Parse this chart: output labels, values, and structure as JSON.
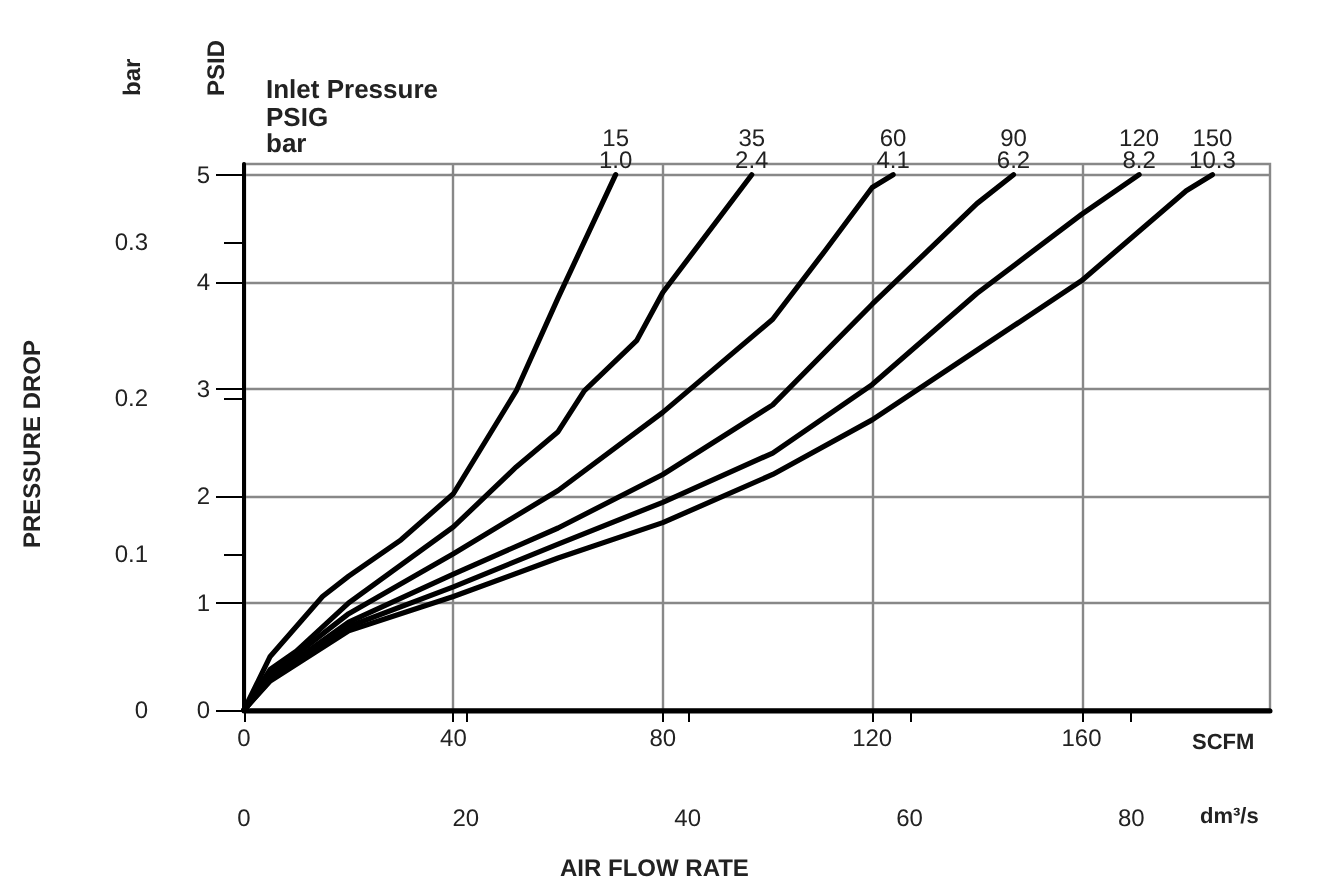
{
  "chart_data": {
    "type": "line",
    "legend_title": "Inlet Pressure",
    "xlabel": "SCFM",
    "x2label": "dm³/s",
    "ylabel": "PSID",
    "y2label": "bar",
    "annotations": [
      "PSIG",
      "bar",
      "PRESSURE DROP",
      "AIR FLOW RATE"
    ],
    "xlim": [
      0,
      196
    ],
    "xticks": [
      0,
      40,
      80,
      120,
      160
    ],
    "x2lim": [
      0,
      92.5
    ],
    "x2ticks": [
      0,
      20,
      40,
      60,
      80
    ],
    "ylim": [
      0,
      5.1
    ],
    "yticks": [
      0,
      1,
      2,
      3,
      4,
      5
    ],
    "y2lim": [
      0,
      0.35
    ],
    "y2ticks": [
      0,
      0.1,
      0.2,
      0.3
    ],
    "grid": true,
    "legend": false,
    "marker": "none",
    "line_style": "solid",
    "series": [
      {
        "name": "15\n1.0",
        "color": "#000000",
        "x": [
          0,
          5,
          15,
          20,
          30,
          40,
          52,
          60,
          71
        ],
        "values": [
          0,
          0.5,
          1.06,
          1.25,
          1.59,
          2.02,
          2.98,
          3.85,
          5
        ]
      },
      {
        "name": "35\n2.4",
        "color": "#000000",
        "x": [
          0,
          5,
          10,
          20,
          40,
          52,
          60,
          65,
          75,
          80,
          97
        ],
        "values": [
          0,
          0.38,
          0.55,
          1.0,
          1.71,
          2.27,
          2.6,
          2.98,
          3.45,
          3.9,
          5
        ]
      },
      {
        "name": "60\n4.1",
        "color": "#000000",
        "x": [
          0,
          5,
          20,
          40,
          60,
          80,
          101,
          111,
          120,
          124
        ],
        "values": [
          0,
          0.33,
          0.9,
          1.46,
          2.05,
          2.78,
          3.65,
          4.29,
          4.88,
          5
        ]
      },
      {
        "name": "90\n6.2",
        "color": "#000000",
        "x": [
          0,
          5,
          20,
          40,
          60,
          80,
          101,
          120,
          140,
          147
        ],
        "values": [
          0,
          0.3,
          0.82,
          1.27,
          1.7,
          2.2,
          2.85,
          3.79,
          4.73,
          5
        ]
      },
      {
        "name": "120\n8.2",
        "color": "#000000",
        "x": [
          0,
          5,
          20,
          40,
          60,
          80,
          101,
          120,
          140,
          160,
          171
        ],
        "values": [
          0,
          0.28,
          0.78,
          1.15,
          1.55,
          1.94,
          2.4,
          3.04,
          3.89,
          4.63,
          5
        ]
      },
      {
        "name": "150\n10.3",
        "color": "#000000",
        "x": [
          0,
          5,
          20,
          40,
          60,
          80,
          101,
          120,
          140,
          160,
          180,
          185
        ],
        "values": [
          0,
          0.27,
          0.74,
          1.06,
          1.42,
          1.75,
          2.2,
          2.71,
          3.36,
          4.01,
          4.85,
          5
        ]
      }
    ]
  }
}
